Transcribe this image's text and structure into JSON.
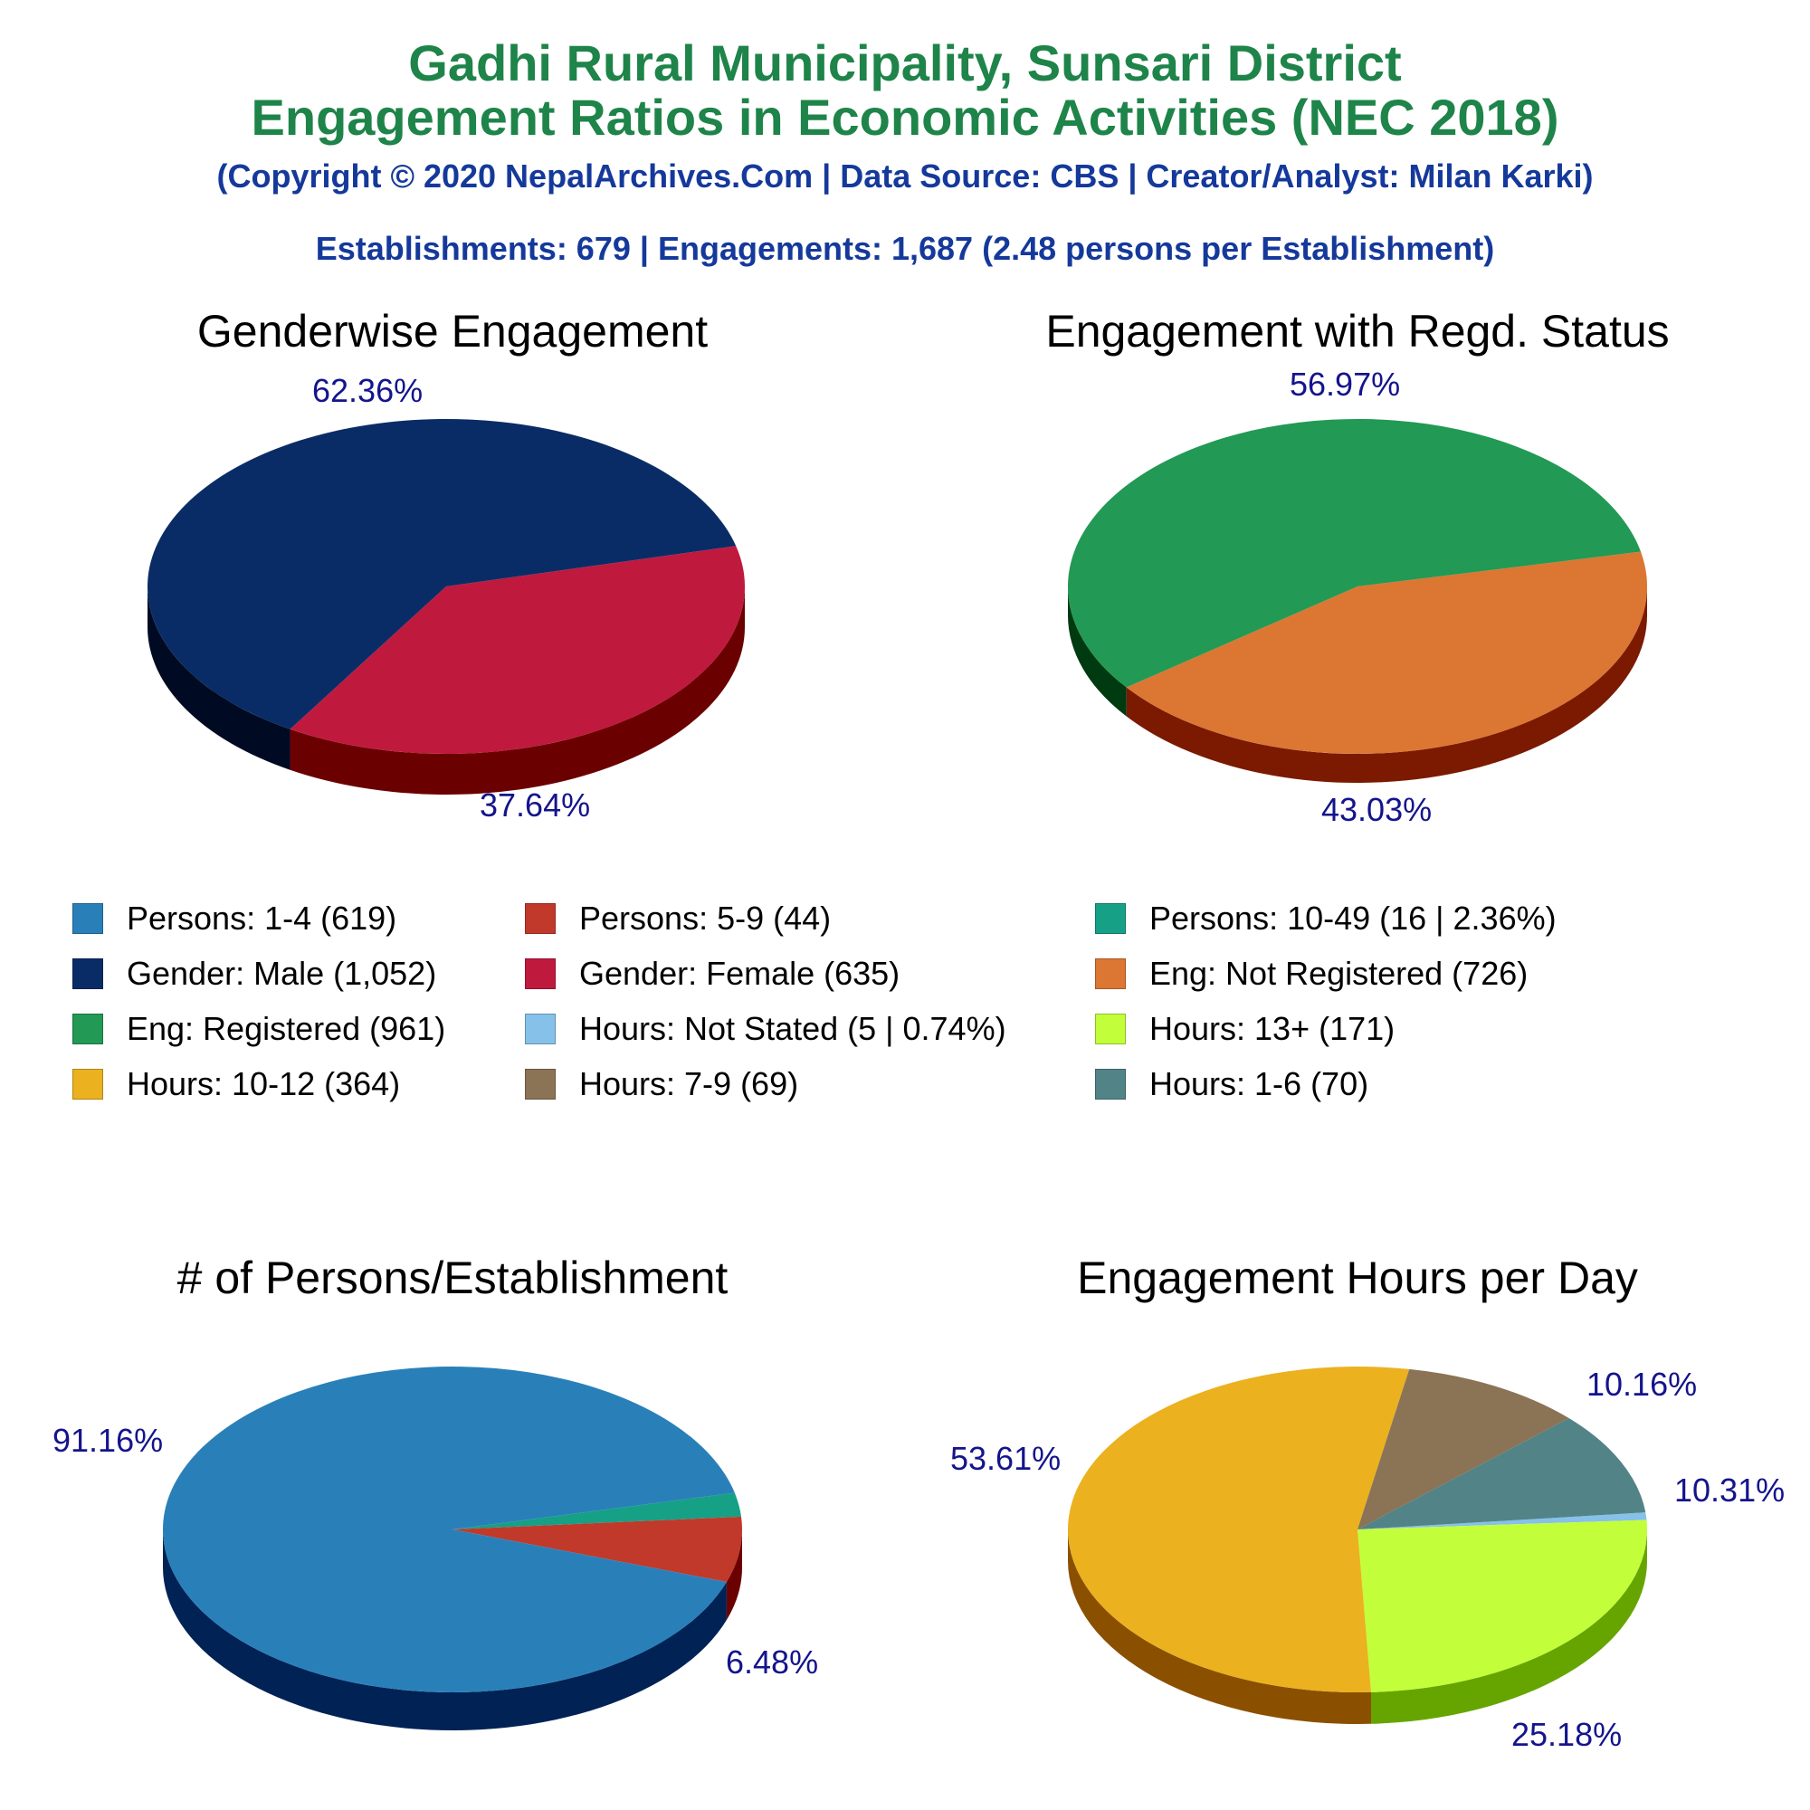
{
  "header": {
    "title_line1": "Gadhi Rural Municipality, Sunsari District",
    "title_line2": "Engagement Ratios in Economic Activities (NEC 2018)",
    "copyright": "(Copyright © 2020 NepalArchives.Com | Data Source: CBS | Creator/Analyst: Milan Karki)",
    "summary": "Establishments: 679 | Engagements: 1,687 (2.48 persons per Establishment)"
  },
  "legend": [
    {
      "label": "Persons: 1-4 (619)",
      "color": "#2980b9"
    },
    {
      "label": "Persons: 5-9 (44)",
      "color": "#c0392b"
    },
    {
      "label": "Persons: 10-49 (16 | 2.36%)",
      "color": "#16a085"
    },
    {
      "label": "Gender: Male (1,052)",
      "color": "#0a2c66"
    },
    {
      "label": "Gender: Female (635)",
      "color": "#c0193e"
    },
    {
      "label": "Eng: Not Registered (726)",
      "color": "#dc7633"
    },
    {
      "label": "Eng: Registered (961)",
      "color": "#229954"
    },
    {
      "label": "Hours: Not Stated (5 | 0.74%)",
      "color": "#85c1e9"
    },
    {
      "label": "Hours: 13+ (171)",
      "color": "#c2ff3a"
    },
    {
      "label": "Hours: 10-12 (364)",
      "color": "#ebb11f"
    },
    {
      "label": "Hours: 7-9 (69)",
      "color": "#8b7355"
    },
    {
      "label": "Hours: 1-6 (70)",
      "color": "#528387"
    }
  ],
  "chart_data": [
    {
      "type": "pie",
      "title": "Genderwise Engagement",
      "slices": [
        {
          "name": "Gender: Female",
          "value": 635,
          "color": "#c0193e",
          "side": "#6b0000",
          "label": "37.64%"
        },
        {
          "name": "Gender: Male",
          "value": 1052,
          "color": "#0a2c66",
          "side": "#000a22",
          "label": "62.36%"
        }
      ]
    },
    {
      "type": "pie",
      "title": "Engagement with Regd. Status",
      "slices": [
        {
          "name": "Eng: Not Registered",
          "value": 726,
          "color": "#dc7633",
          "side": "#7b1a00",
          "label": "43.03%"
        },
        {
          "name": "Eng: Registered",
          "value": 961,
          "color": "#229954",
          "side": "#003a10",
          "label": "56.97%"
        }
      ]
    },
    {
      "type": "pie",
      "title": "# of Persons/Establishment",
      "slices": [
        {
          "name": "Persons: 10-49",
          "value": 16,
          "color": "#16a085",
          "side": "#004a35",
          "label": ""
        },
        {
          "name": "Persons: 5-9",
          "value": 44,
          "color": "#c0392b",
          "side": "#6b0000",
          "label": "6.48%"
        },
        {
          "name": "Persons: 1-4",
          "value": 619,
          "color": "#2980b9",
          "side": "#002255",
          "label": "91.16%"
        }
      ]
    },
    {
      "type": "pie",
      "title": "Engagement Hours per Day",
      "slices": [
        {
          "name": "Hours: Not Stated",
          "value": 5,
          "color": "#85c1e9",
          "side": "#1a5a8a",
          "label": ""
        },
        {
          "name": "Hours: 13+",
          "value": 171,
          "color": "#c2ff3a",
          "side": "#66a500",
          "label": "25.18%"
        },
        {
          "name": "Hours: 10-12",
          "value": 364,
          "color": "#ebb11f",
          "side": "#8a5000",
          "label": "53.61%"
        },
        {
          "name": "Hours: 7-9",
          "value": 69,
          "color": "#8b7355",
          "side": "#3a2a15",
          "label": "10.16%"
        },
        {
          "name": "Hours: 1-6",
          "value": 70,
          "color": "#528387",
          "side": "#0a3035",
          "label": "10.31%"
        }
      ]
    }
  ]
}
